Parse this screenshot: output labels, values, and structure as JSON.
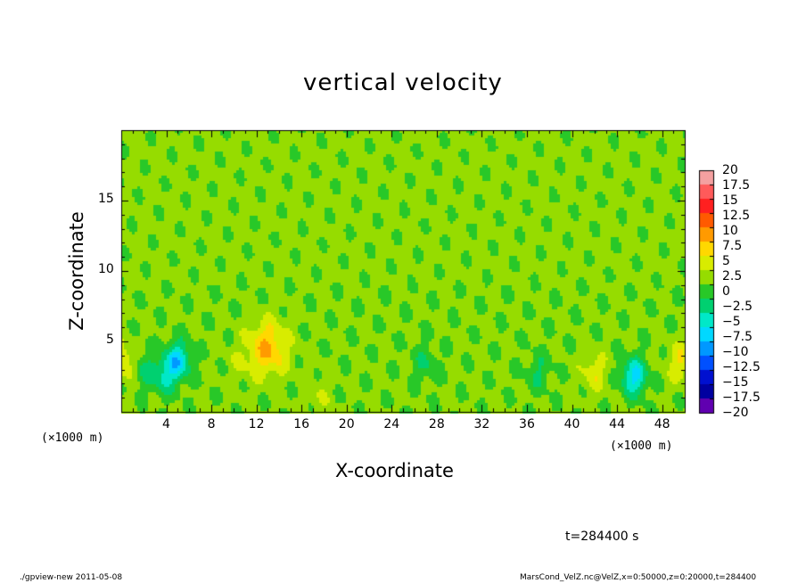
{
  "chart_data": {
    "type": "heatmap",
    "title": "vertical velocity",
    "xlabel": "X-coordinate",
    "ylabel": "Z-coordinate",
    "x_unit": "(×1000 m)",
    "y_unit": "(×1000 m)",
    "xlim": [
      0,
      50
    ],
    "ylim": [
      0,
      20
    ],
    "x_ticks": [
      "4",
      "8",
      "12",
      "16",
      "20",
      "24",
      "28",
      "32",
      "36",
      "40",
      "44",
      "48"
    ],
    "y_ticks": [
      "5",
      "10",
      "15"
    ],
    "x_tick_values": [
      4,
      8,
      12,
      16,
      20,
      24,
      28,
      32,
      36,
      40,
      44,
      48
    ],
    "y_tick_values": [
      5,
      10,
      15
    ],
    "time_label": "t=284400 s",
    "colorbar": {
      "levels": [
        "20",
        "17.5",
        "15",
        "12.5",
        "10",
        "7.5",
        "5",
        "2.5",
        "0",
        "−2.5",
        "−5",
        "−7.5",
        "−10",
        "−12.5",
        "−15",
        "−17.5",
        "−20"
      ],
      "colors": [
        "#f4a0a0",
        "#ff5a5a",
        "#ff2020",
        "#ff5a00",
        "#ff9a00",
        "#ffd800",
        "#d8ec00",
        "#96dc00",
        "#28c828",
        "#00d070",
        "#00e8c8",
        "#00d8ff",
        "#0098ff",
        "#0050ff",
        "#0010d0",
        "#0000a0",
        "#6000b0"
      ]
    },
    "features": [
      {
        "x": 13,
        "z": 4.5,
        "w": 7.5,
        "desc": "updraft"
      },
      {
        "x": 5,
        "z": 3.6,
        "w": -9
      },
      {
        "x": 3.8,
        "z": 2.5,
        "w": -5
      },
      {
        "x": 2,
        "z": 3.0,
        "w": -3.5
      },
      {
        "x": 0.3,
        "z": 3.5,
        "w": 5
      },
      {
        "x": 49.7,
        "z": 3.5,
        "w": 5
      },
      {
        "x": 42,
        "z": 2.8,
        "w": 4
      },
      {
        "x": 45.5,
        "z": 2.5,
        "w": -9
      },
      {
        "x": 37,
        "z": 2.8,
        "w": -3
      },
      {
        "x": 27,
        "z": 3.4,
        "w": -3
      },
      {
        "x": 17.5,
        "z": 1.2,
        "w": 2
      },
      {
        "x": 10.5,
        "z": 3.5,
        "w": 1.5
      }
    ]
  },
  "footer": {
    "left": "./gpview-new  2011-05-08",
    "right": "MarsCond_VelZ.nc@VelZ,x=0:50000,z=0:20000,t=284400"
  }
}
